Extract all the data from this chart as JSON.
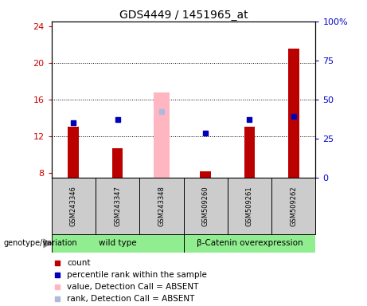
{
  "title": "GDS4449 / 1451965_at",
  "samples": [
    "GSM243346",
    "GSM243347",
    "GSM243348",
    "GSM509260",
    "GSM509261",
    "GSM509262"
  ],
  "count_values": [
    13.0,
    10.7,
    null,
    8.2,
    13.0,
    21.5
  ],
  "count_absent": [
    null,
    null,
    16.8,
    null,
    null,
    null
  ],
  "percentile_values": [
    13.5,
    13.8,
    null,
    12.3,
    13.8,
    14.2
  ],
  "percentile_absent": [
    null,
    null,
    14.7,
    null,
    null,
    null
  ],
  "count_color": "#bb0000",
  "count_absent_color": "#FFB6C1",
  "percentile_color": "#0000bb",
  "percentile_absent_color": "#b0b8e0",
  "ylim_left": [
    7.5,
    24.5
  ],
  "ylim_right": [
    0,
    100
  ],
  "yticks_left": [
    8,
    12,
    16,
    20,
    24
  ],
  "yticks_right": [
    0,
    25,
    50,
    75,
    100
  ],
  "ytick_labels_right": [
    "0",
    "25",
    "50",
    "75",
    "100%"
  ],
  "label_color_left": "#cc0000",
  "label_color_right": "#0000cc",
  "group1_name": "wild type",
  "group2_name": "β-Catenin overexpression",
  "group_color": "#90EE90",
  "genotype_label": "genotype/variation",
  "legend_items": [
    {
      "label": "count",
      "color": "#bb0000"
    },
    {
      "label": "percentile rank within the sample",
      "color": "#0000bb"
    },
    {
      "label": "value, Detection Call = ABSENT",
      "color": "#FFB6C1"
    },
    {
      "label": "rank, Detection Call = ABSENT",
      "color": "#b0b8e0"
    }
  ],
  "bar_width": 0.25,
  "absent_bar_width": 0.35
}
